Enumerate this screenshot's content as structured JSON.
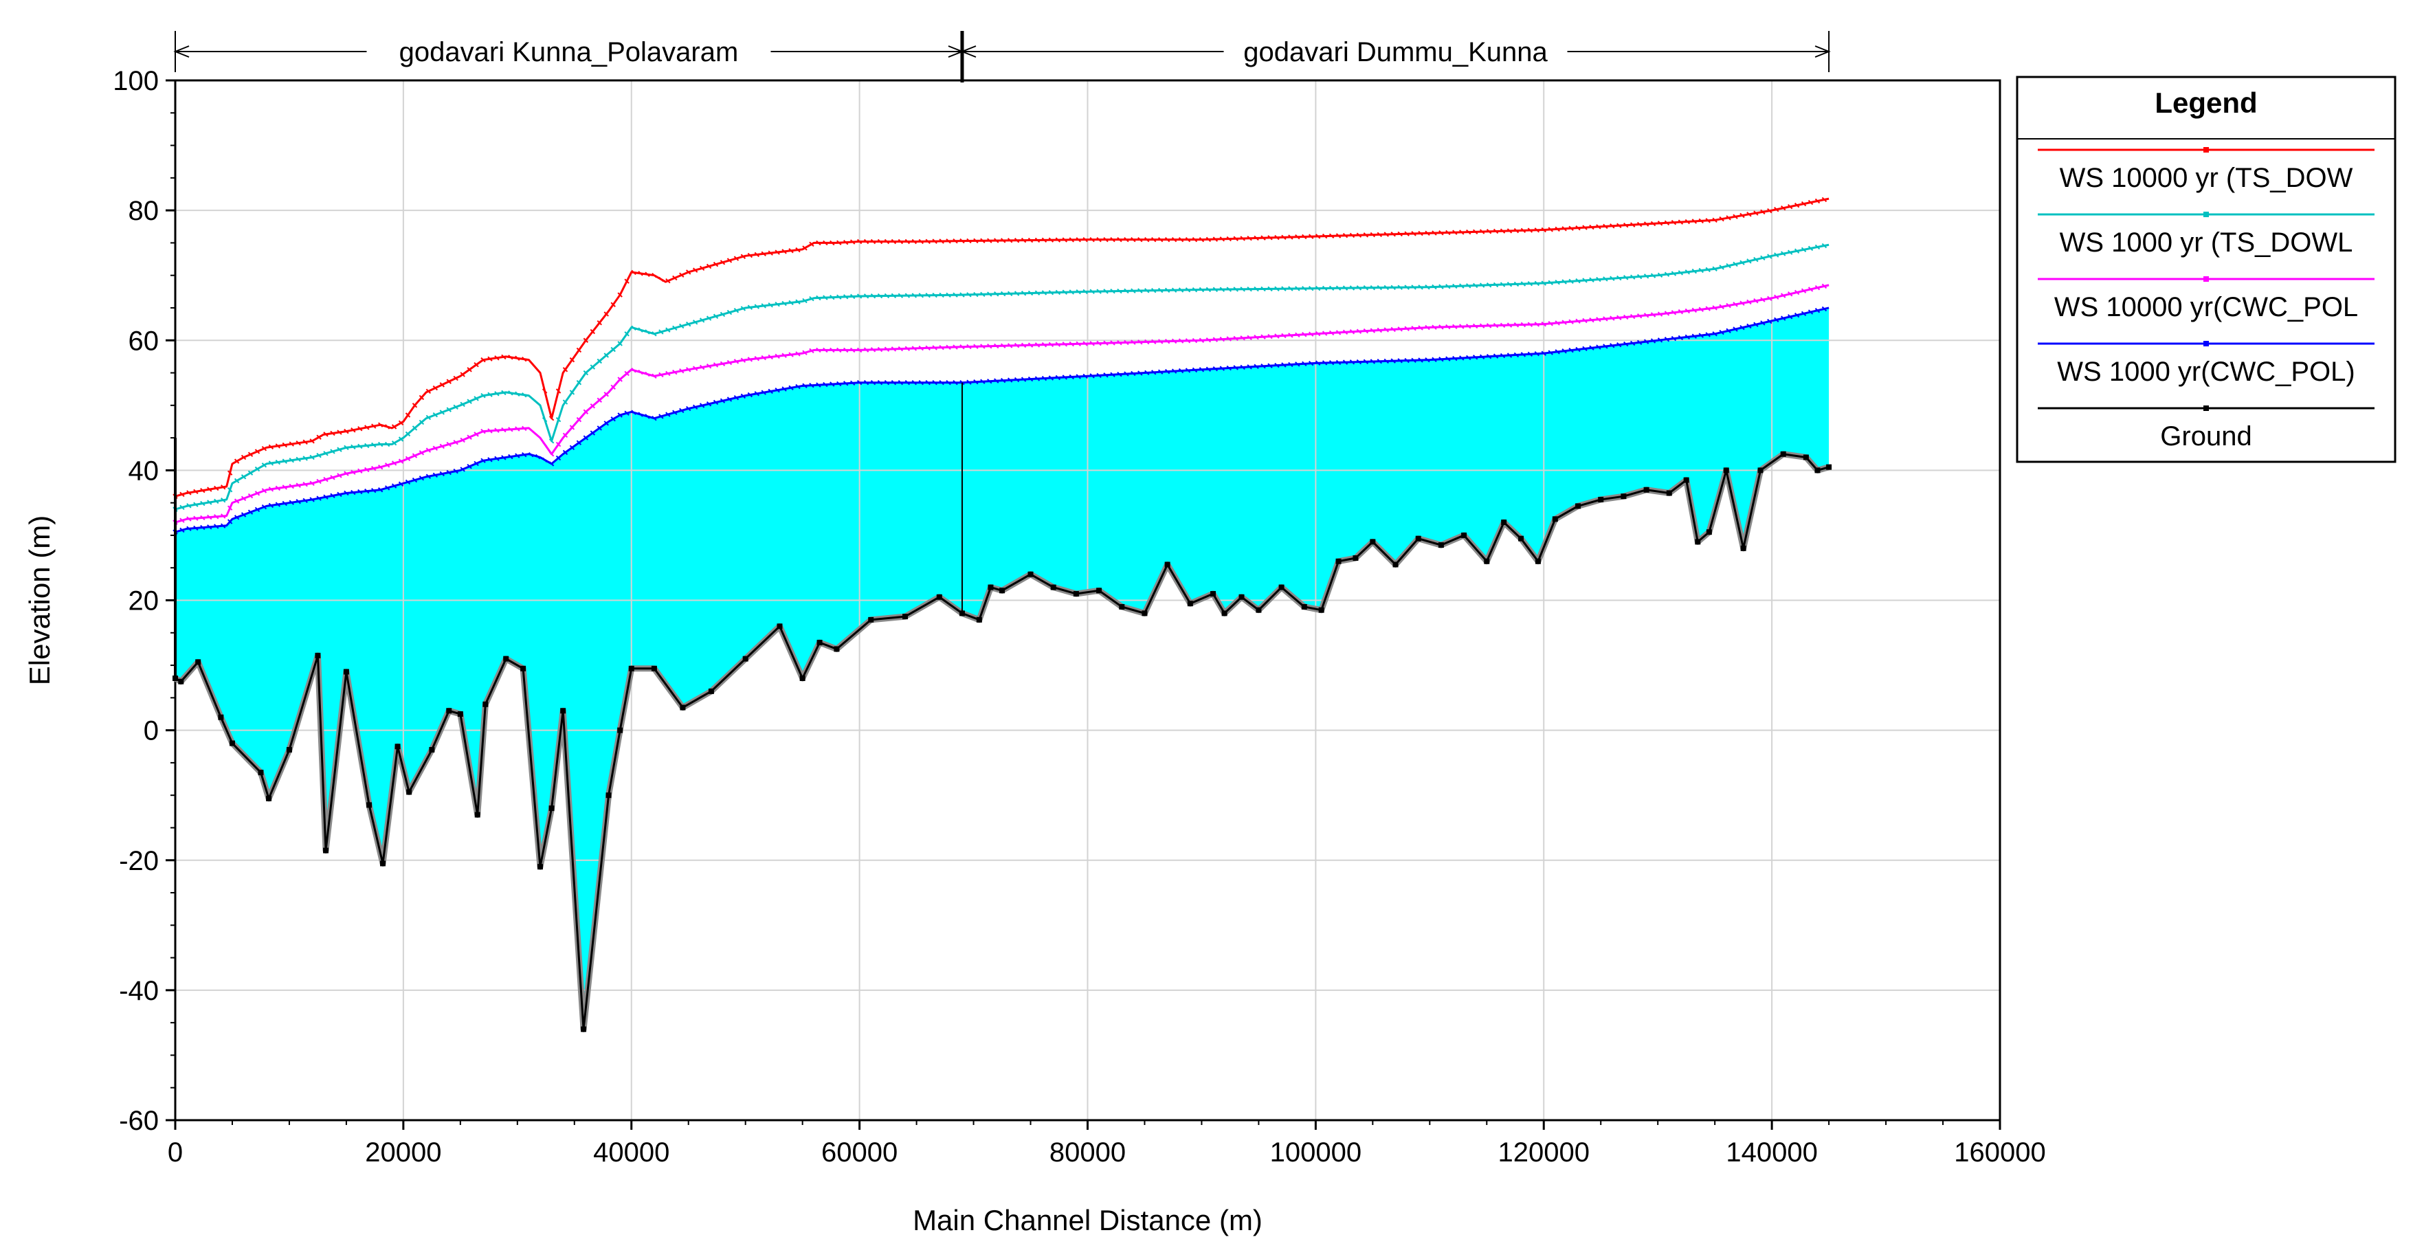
{
  "chart_data": {
    "type": "line",
    "xlabel": "Main Channel Distance  (m)",
    "ylabel": "Elevation (m)",
    "xlim": [
      0,
      160000
    ],
    "ylim": [
      -60,
      100
    ],
    "x_ticks": [
      0,
      20000,
      40000,
      60000,
      80000,
      100000,
      120000,
      140000,
      160000
    ],
    "y_ticks": [
      -60,
      -40,
      -20,
      0,
      20,
      40,
      60,
      80,
      100
    ],
    "grid": true,
    "reaches": [
      {
        "label": "godavari Kunna_Polavaram",
        "start": 0,
        "end": 69000
      },
      {
        "label": "godavari Dummu_Kunna",
        "start": 69000,
        "end": 145000
      }
    ],
    "legend": {
      "title": "Legend",
      "placement": "right",
      "entries": [
        {
          "label": "WS  10000 yr (TS_DOW",
          "color": "#ff0000"
        },
        {
          "label": "WS  1000 yr (TS_DOWL",
          "color": "#00c0c0"
        },
        {
          "label": "WS  10000 yr(CWC_POL",
          "color": "#ff00ff"
        },
        {
          "label": "WS  1000 yr(CWC_POL)",
          "color": "#0000ff"
        },
        {
          "label": "Ground",
          "color": "#000000"
        }
      ]
    },
    "fill_color": "#00ffff",
    "series": [
      {
        "name": "WS  10000 yr (TS_DOW",
        "color": "#ff0000",
        "x": [
          0,
          1000,
          4500,
          5000,
          6000,
          8000,
          10000,
          12000,
          13000,
          15000,
          18000,
          19000,
          20000,
          21000,
          22000,
          25000,
          27000,
          29000,
          31000,
          32000,
          33000,
          34000,
          36000,
          38000,
          39000,
          40000,
          42000,
          43000,
          45000,
          50000,
          55000,
          56000,
          58000,
          60000,
          65000,
          69000,
          80000,
          90000,
          100000,
          110000,
          120000,
          125000,
          130000,
          135000,
          140000,
          145000
        ],
        "y": [
          36,
          36.5,
          37.5,
          41,
          42,
          43.5,
          44,
          44.5,
          45.5,
          46,
          47,
          46.5,
          47.5,
          50,
          52,
          54.5,
          57,
          57.5,
          57,
          55,
          48,
          55,
          60,
          64.5,
          67,
          70.5,
          70,
          69,
          70.5,
          73,
          74,
          75,
          75,
          75.2,
          75.2,
          75.3,
          75.5,
          75.5,
          76,
          76.5,
          77,
          77.5,
          78,
          78.5,
          80,
          81.8
        ]
      },
      {
        "name": "WS  1000 yr (TS_DOWL",
        "color": "#00c0c0",
        "x": [
          0,
          1000,
          4500,
          5000,
          8000,
          12000,
          13000,
          15000,
          18000,
          19000,
          20000,
          21000,
          22000,
          25000,
          27000,
          29000,
          31000,
          32000,
          33000,
          34000,
          36000,
          38000,
          39000,
          40000,
          42000,
          45000,
          50000,
          55000,
          56000,
          60000,
          69000,
          80000,
          90000,
          100000,
          110000,
          120000,
          130000,
          135000,
          140000,
          145000
        ],
        "y": [
          34,
          34.5,
          35.5,
          38,
          41,
          42,
          42.5,
          43.5,
          44,
          44,
          45,
          46.5,
          48,
          50,
          51.5,
          52,
          51.5,
          50,
          44.5,
          50,
          55,
          58,
          59.5,
          62,
          61,
          62.5,
          65,
          66,
          66.5,
          66.8,
          67,
          67.5,
          67.8,
          68,
          68.2,
          68.8,
          70,
          71,
          73,
          74.7
        ]
      },
      {
        "name": "WS  10000 yr(CWC_POL",
        "color": "#ff00ff",
        "x": [
          0,
          1000,
          4500,
          5000,
          8000,
          12000,
          15000,
          18000,
          20000,
          22000,
          25000,
          27000,
          31000,
          32000,
          33000,
          34000,
          36000,
          38000,
          39000,
          40000,
          42000,
          45000,
          50000,
          55000,
          56000,
          60000,
          69000,
          80000,
          90000,
          100000,
          110000,
          120000,
          130000,
          135000,
          140000,
          145000
        ],
        "y": [
          32,
          32.5,
          33,
          35,
          37,
          38,
          39.5,
          40.5,
          41.5,
          43,
          44.5,
          46,
          46.5,
          45,
          42.5,
          45,
          49,
          52,
          54,
          55.5,
          54.5,
          55.5,
          57,
          58,
          58.5,
          58.5,
          59,
          59.5,
          60,
          61,
          62,
          62.5,
          64,
          65,
          66.5,
          68.5
        ]
      },
      {
        "name": "WS  1000 yr(CWC_POL)",
        "color": "#0000ff",
        "x": [
          0,
          1000,
          4500,
          5000,
          8000,
          12000,
          15000,
          18000,
          20000,
          22000,
          25000,
          27000,
          31000,
          32000,
          33000,
          34000,
          36000,
          38000,
          39000,
          40000,
          42000,
          45000,
          50000,
          55000,
          60000,
          69000,
          80000,
          90000,
          100000,
          110000,
          120000,
          130000,
          135000,
          140000,
          145000
        ],
        "y": [
          30.5,
          31,
          31.5,
          32.5,
          34.5,
          35.5,
          36.5,
          37,
          38,
          39,
          40,
          41.5,
          42.5,
          42,
          41,
          42.5,
          45,
          47.5,
          48.5,
          49,
          48,
          49.5,
          51.5,
          53,
          53.5,
          53.5,
          54.5,
          55.5,
          56.5,
          57,
          58,
          60,
          61,
          63,
          65
        ]
      },
      {
        "name": "Ground",
        "color": "#000000",
        "x": [
          0,
          500,
          2000,
          4000,
          5000,
          7500,
          8200,
          10000,
          12500,
          13200,
          15000,
          17000,
          18200,
          19500,
          20500,
          22500,
          24000,
          25000,
          26500,
          27200,
          29000,
          30500,
          32000,
          33000,
          34000,
          35800,
          38000,
          39000,
          40000,
          42000,
          44500,
          47000,
          50000,
          53000,
          55000,
          56500,
          58000,
          61000,
          64000,
          67000,
          69000,
          70500,
          71500,
          72500,
          75000,
          77000,
          79000,
          81000,
          83000,
          85000,
          87000,
          89000,
          91000,
          92000,
          93500,
          95000,
          97000,
          99000,
          100500,
          102000,
          103500,
          105000,
          107000,
          109000,
          111000,
          113000,
          115000,
          116500,
          118000,
          119500,
          121000,
          123000,
          125000,
          127000,
          129000,
          131000,
          132500,
          133500,
          134500,
          136000,
          137500,
          139000,
          141000,
          143000,
          144000,
          145000
        ],
        "y": [
          8,
          7.5,
          10.5,
          2,
          -2,
          -6.5,
          -10.5,
          -3,
          11.5,
          -18.5,
          9,
          -11.5,
          -20.5,
          -2.5,
          -9.5,
          -3,
          3,
          2.5,
          -13,
          4,
          11,
          9.5,
          -21,
          -12,
          3,
          -46,
          -10,
          0,
          9.5,
          9.5,
          3.5,
          6,
          11,
          16,
          8,
          13.5,
          12.5,
          17,
          17.5,
          20.5,
          18,
          17,
          22,
          21.5,
          24,
          22,
          21,
          21.5,
          19,
          18,
          25.5,
          19.5,
          21,
          18,
          20.5,
          18.5,
          22,
          19,
          18.5,
          26,
          26.5,
          29,
          25.5,
          29.5,
          28.5,
          30,
          26,
          32,
          29.5,
          26,
          32.5,
          34.5,
          35.5,
          36,
          37,
          36.5,
          38.5,
          29,
          30.5,
          40,
          28,
          40,
          42.5,
          42,
          40,
          40.5
        ]
      }
    ]
  }
}
